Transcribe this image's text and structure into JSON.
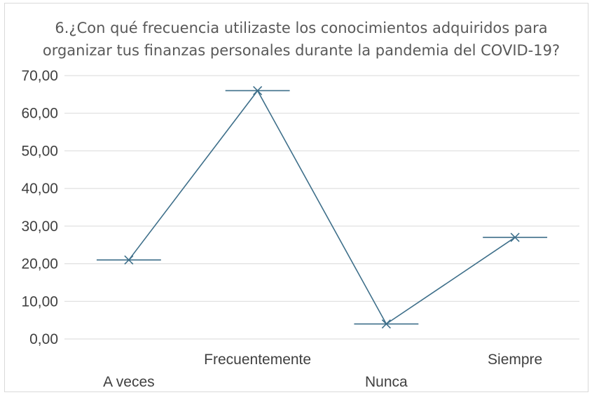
{
  "chart_data": {
    "type": "line",
    "title_lines": [
      "6.¿Con qué frecuencia utilizaste los conocimientos adquiridos para",
      "organizar tus finanzas personales durante la pandemia del COVID-19?"
    ],
    "categories": [
      "A veces",
      "Frecuentemente",
      "Nunca",
      "Siempre"
    ],
    "values": [
      21,
      66,
      4,
      27
    ],
    "ylim": [
      0,
      70
    ],
    "yticks": [
      "0,00",
      "10,00",
      "20,00",
      "30,00",
      "40,00",
      "50,00",
      "60,00",
      "70,00"
    ],
    "grid": true,
    "marker": "x",
    "colors": {
      "series": "#3e6f8a",
      "grid": "#d9d9d9"
    }
  }
}
